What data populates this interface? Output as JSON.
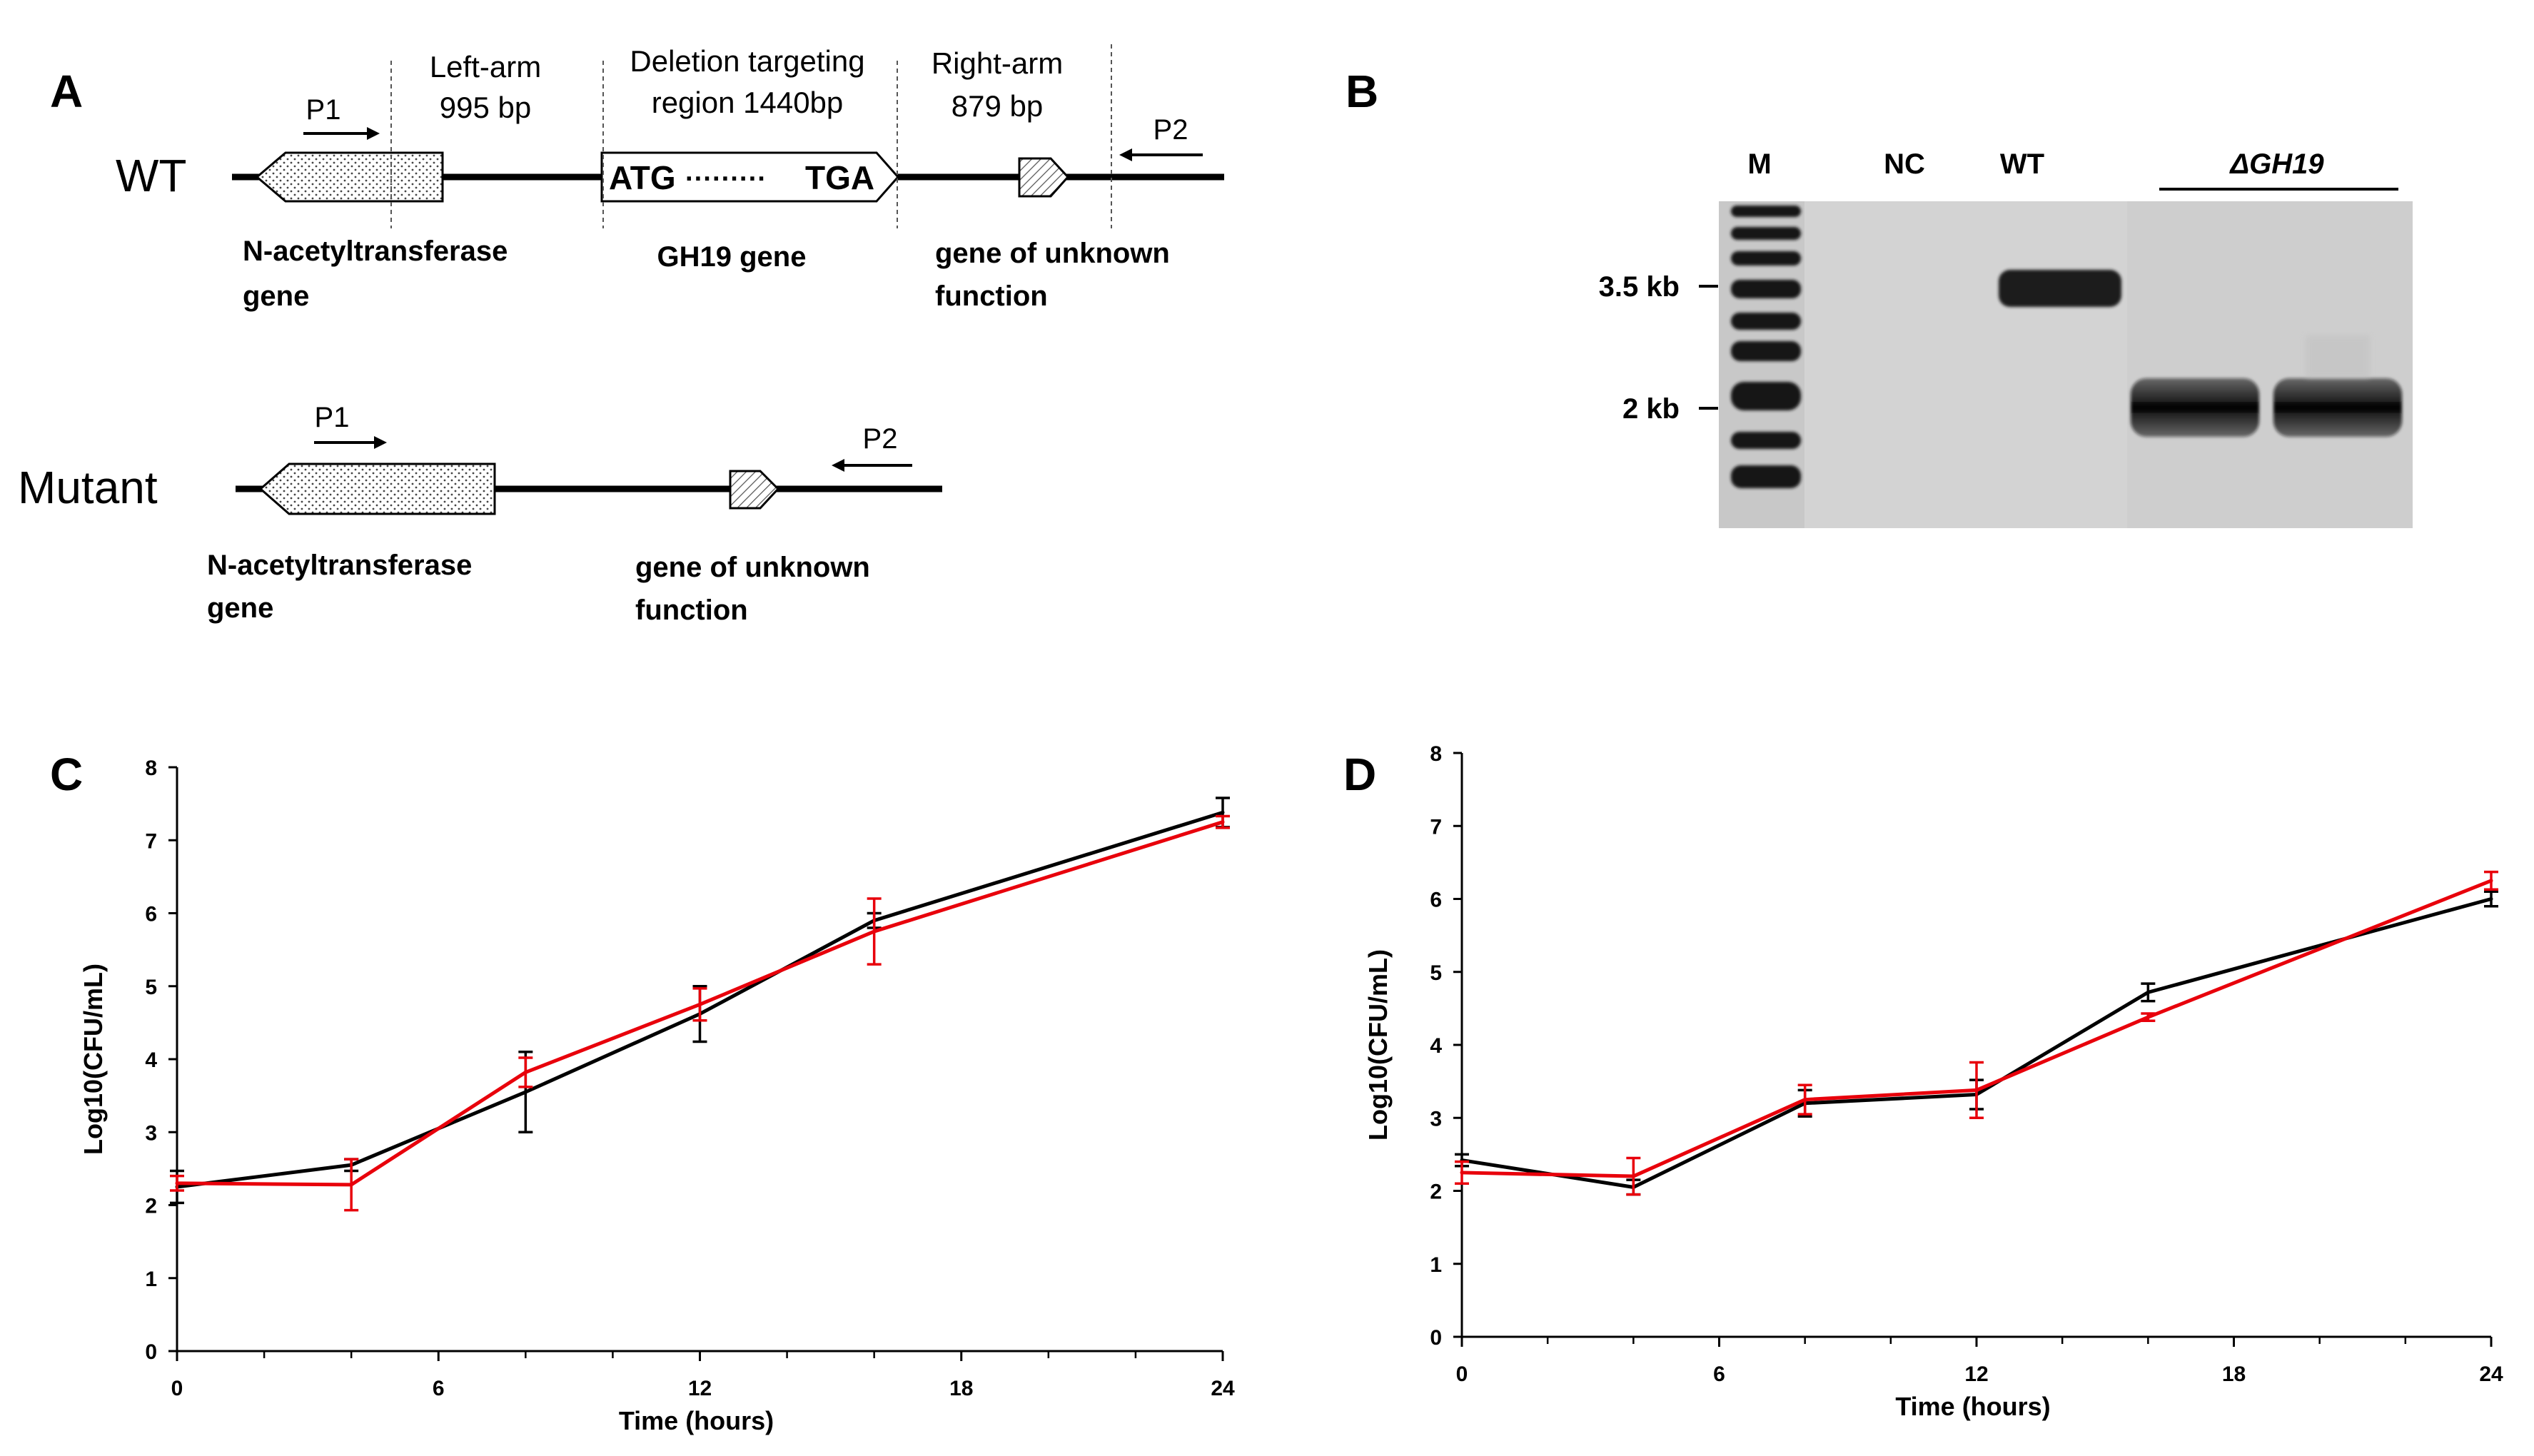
{
  "panel_a": {
    "label": "A",
    "wt": {
      "label": "WT",
      "p1": "P1",
      "p2": "P2",
      "left_arm_title": "Left-arm",
      "left_arm_size": "995 bp",
      "deletion_title": "Deletion targeting",
      "deletion_size": "region 1440bp",
      "right_arm_title": "Right-arm",
      "right_arm_size": "879 bp",
      "start_codon": "ATG",
      "dots": "·········",
      "stop_codon": "TGA",
      "gene_nat_line1": "N-acetyltransferase",
      "gene_nat_line2": "gene",
      "gene_gh19": "GH19 gene",
      "gene_unknown_line1": "gene of unknown",
      "gene_unknown_line2": "function"
    },
    "mutant": {
      "label": "Mutant",
      "p1": "P1",
      "p2": "P2",
      "gene_nat_line1": "N-acetyltransferase",
      "gene_nat_line2": "gene",
      "gene_unknown_line1": "gene of unknown",
      "gene_unknown_line2": "function"
    }
  },
  "panel_b": {
    "label": "B",
    "lanes": {
      "m": "M",
      "nc": "NC",
      "wt": "WT",
      "mutant": "ΔGH19"
    },
    "size_markers": {
      "upper": "3.5 kb",
      "lower": "2 kb"
    }
  },
  "chart_data": [
    {
      "panel": "C",
      "type": "line",
      "xlabel": "Time (hours)",
      "ylabel": "Log10(CFU/mL)",
      "xlim": [
        0,
        24
      ],
      "ylim": [
        0,
        8
      ],
      "xticks": [
        0,
        6,
        12,
        18,
        24
      ],
      "yticks": [
        0,
        1,
        2,
        3,
        4,
        5,
        6,
        7,
        8
      ],
      "series": [
        {
          "name": "black",
          "color": "#000000",
          "x": [
            0,
            4,
            8,
            12,
            16,
            24
          ],
          "y": [
            2.25,
            2.55,
            3.55,
            4.62,
            5.9,
            7.38
          ],
          "err": [
            0.22,
            0.08,
            0.55,
            0.38,
            0.1,
            0.2
          ]
        },
        {
          "name": "red",
          "color": "#e8000b",
          "x": [
            0,
            4,
            8,
            12,
            16,
            24
          ],
          "y": [
            2.3,
            2.28,
            3.82,
            4.75,
            5.75,
            7.25
          ],
          "err": [
            0.1,
            0.35,
            0.2,
            0.22,
            0.45,
            0.08
          ]
        }
      ]
    },
    {
      "panel": "D",
      "type": "line",
      "xlabel": "Time (hours)",
      "ylabel": "Log10(CFU/mL)",
      "xlim": [
        0,
        24
      ],
      "ylim": [
        0,
        8
      ],
      "xticks": [
        0,
        6,
        12,
        18,
        24
      ],
      "yticks": [
        0,
        1,
        2,
        3,
        4,
        5,
        6,
        7,
        8
      ],
      "series": [
        {
          "name": "black",
          "color": "#000000",
          "x": [
            0,
            4,
            8,
            12,
            16,
            24
          ],
          "y": [
            2.42,
            2.05,
            3.2,
            3.32,
            4.72,
            6.0
          ],
          "err": [
            0.08,
            0.1,
            0.18,
            0.2,
            0.12,
            0.1
          ]
        },
        {
          "name": "red",
          "color": "#e8000b",
          "x": [
            0,
            4,
            8,
            12,
            16,
            24
          ],
          "y": [
            2.25,
            2.2,
            3.25,
            3.38,
            4.38,
            6.25
          ],
          "err": [
            0.15,
            0.25,
            0.2,
            0.38,
            0.05,
            0.12
          ]
        }
      ]
    }
  ]
}
